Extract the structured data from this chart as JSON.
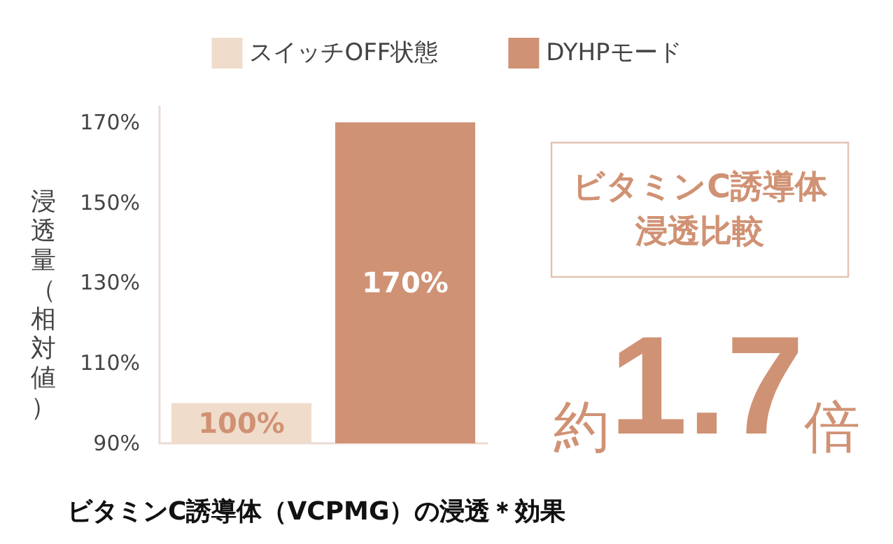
{
  "chart_data": {
    "type": "bar",
    "categories": [
      null,
      null
    ],
    "series": [
      {
        "name": "スイッチOFF状態",
        "color": "#f0dccb",
        "values": [
          100,
          null
        ],
        "value_labels": [
          "100%",
          null
        ]
      },
      {
        "name": "DYHPモード",
        "color": "#d09274",
        "values": [
          null,
          170
        ],
        "value_labels": [
          null,
          "170%"
        ]
      }
    ],
    "ylabel": "浸透量（相対値）",
    "ylim": [
      90,
      174
    ],
    "yticks": [
      {
        "value": 90,
        "label": "90%"
      },
      {
        "value": 110,
        "label": "110%"
      },
      {
        "value": 130,
        "label": "130%"
      },
      {
        "value": 150,
        "label": "150%"
      },
      {
        "value": 170,
        "label": "170%"
      }
    ],
    "grid": false,
    "legend": "top",
    "annotations": [
      "ビタミンC誘導体",
      "浸透比較",
      "約1.7倍",
      "ビタミンC誘導体（VCPMG）の浸透＊効果"
    ]
  }
}
